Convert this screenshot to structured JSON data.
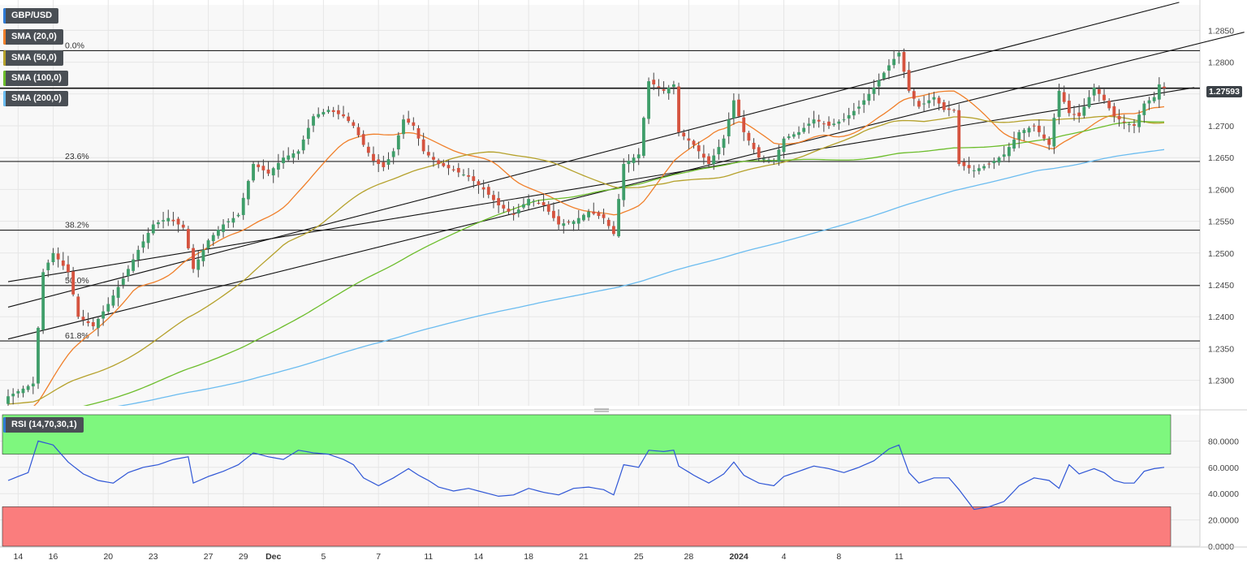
{
  "chart_data": [
    {
      "type": "candlestick",
      "symbol": "GBP/USD",
      "ylim": [
        1.226,
        1.289
      ],
      "y_ticks": [
        "1.2300",
        "1.2350",
        "1.2400",
        "1.2450",
        "1.2500",
        "1.2550",
        "1.2600",
        "1.2650",
        "1.2700",
        "1.2750",
        "1.2800",
        "1.2850"
      ],
      "x_ticks": [
        "14",
        "16",
        "20",
        "23",
        "27",
        "29",
        "Dec",
        "5",
        "7",
        "11",
        "14",
        "18",
        "21",
        "25",
        "28",
        "2024",
        "4",
        "8",
        "11"
      ],
      "last_price": "1.27593",
      "last_price_value": 1.27593,
      "fibonacci": [
        {
          "label": "0.0%",
          "value": 1.2818
        },
        {
          "label": "23.6%",
          "value": 1.2644
        },
        {
          "label": "38.2%",
          "value": 1.2536
        },
        {
          "label": "50.0%",
          "value": 1.2449
        },
        {
          "label": "61.8%",
          "value": 1.2362
        }
      ],
      "resistance_level": 1.2759,
      "indicators": [
        {
          "name": "SMA (20,0)",
          "color": "#f07f2a"
        },
        {
          "name": "SMA (50,0)",
          "color": "#b5a12b"
        },
        {
          "name": "SMA (100,0)",
          "color": "#6cbd2b"
        },
        {
          "name": "SMA (200,0)",
          "color": "#6bbcf0"
        }
      ],
      "close_keypoints": [
        [
          0,
          1.2275
        ],
        [
          5,
          1.2295
        ],
        [
          7,
          1.247
        ],
        [
          9,
          1.25
        ],
        [
          12,
          1.247
        ],
        [
          14,
          1.24
        ],
        [
          17,
          1.2385
        ],
        [
          20,
          1.242
        ],
        [
          23,
          1.246
        ],
        [
          26,
          1.2505
        ],
        [
          29,
          1.2545
        ],
        [
          32,
          1.2555
        ],
        [
          35,
          1.254
        ],
        [
          37,
          1.2475
        ],
        [
          40,
          1.252
        ],
        [
          43,
          1.2545
        ],
        [
          46,
          1.256
        ],
        [
          49,
          1.264
        ],
        [
          52,
          1.2625
        ],
        [
          55,
          1.265
        ],
        [
          58,
          1.266
        ],
        [
          61,
          1.2715
        ],
        [
          64,
          1.2725
        ],
        [
          67,
          1.2715
        ],
        [
          69,
          1.27
        ],
        [
          71,
          1.267
        ],
        [
          73,
          1.2645
        ],
        [
          75,
          1.2635
        ],
        [
          77,
          1.266
        ],
        [
          79,
          1.271
        ],
        [
          81,
          1.27
        ],
        [
          83,
          1.266
        ],
        [
          86,
          1.264
        ],
        [
          89,
          1.263
        ],
        [
          92,
          1.262
        ],
        [
          95,
          1.26
        ],
        [
          98,
          1.2575
        ],
        [
          101,
          1.256
        ],
        [
          104,
          1.2585
        ],
        [
          107,
          1.2575
        ],
        [
          110,
          1.2545
        ],
        [
          113,
          1.255
        ],
        [
          116,
          1.2565
        ],
        [
          119,
          1.2555
        ],
        [
          121,
          1.253
        ],
        [
          123,
          1.264
        ],
        [
          126,
          1.2655
        ],
        [
          128,
          1.277
        ],
        [
          131,
          1.2755
        ],
        [
          133,
          1.2765
        ],
        [
          134,
          1.269
        ],
        [
          137,
          1.267
        ],
        [
          140,
          1.264
        ],
        [
          143,
          1.268
        ],
        [
          145,
          1.274
        ],
        [
          147,
          1.269
        ],
        [
          150,
          1.265
        ],
        [
          153,
          1.2645
        ],
        [
          155,
          1.268
        ],
        [
          158,
          1.269
        ],
        [
          161,
          1.271
        ],
        [
          164,
          1.27
        ],
        [
          167,
          1.271
        ],
        [
          170,
          1.273
        ],
        [
          173,
          1.276
        ],
        [
          176,
          1.2795
        ],
        [
          178,
          1.2815
        ],
        [
          180,
          1.2755
        ],
        [
          182,
          1.273
        ],
        [
          185,
          1.2745
        ],
        [
          187,
          1.2725
        ],
        [
          189,
          1.2725
        ],
        [
          190,
          1.264
        ],
        [
          193,
          1.263
        ],
        [
          196,
          1.264
        ],
        [
          199,
          1.2655
        ],
        [
          202,
          1.269
        ],
        [
          205,
          1.27
        ],
        [
          208,
          1.267
        ],
        [
          210,
          1.2755
        ],
        [
          212,
          1.272
        ],
        [
          214,
          1.2715
        ],
        [
          217,
          1.276
        ],
        [
          219,
          1.274
        ],
        [
          221,
          1.2715
        ],
        [
          223,
          1.2705
        ],
        [
          225,
          1.27
        ],
        [
          227,
          1.2735
        ],
        [
          229,
          1.2745
        ],
        [
          230,
          1.2765
        ],
        [
          231,
          1.2759
        ]
      ],
      "channels": [
        {
          "from": [
            0,
            1.2455
          ],
          "to": [
            237,
            1.276
          ]
        },
        {
          "from": [
            0,
            1.2365
          ],
          "to": [
            247,
            1.2847
          ]
        },
        {
          "from": [
            0,
            1.2415
          ],
          "to": [
            234,
            1.2894
          ]
        }
      ]
    },
    {
      "type": "line",
      "name": "RSI (14,70,30,1)",
      "ylim": [
        0,
        100
      ],
      "y_ticks": [
        "0.0000",
        "20.0000",
        "40.0000",
        "60.0000",
        "80.0000"
      ],
      "overbought": 70,
      "oversold": 30,
      "keypoints": [
        [
          0,
          50
        ],
        [
          4,
          56
        ],
        [
          6,
          80
        ],
        [
          9,
          77
        ],
        [
          12,
          64
        ],
        [
          15,
          55
        ],
        [
          18,
          50
        ],
        [
          21,
          48
        ],
        [
          24,
          56
        ],
        [
          27,
          60
        ],
        [
          30,
          62
        ],
        [
          33,
          66
        ],
        [
          36,
          68
        ],
        [
          37,
          48
        ],
        [
          40,
          53
        ],
        [
          43,
          57
        ],
        [
          46,
          62
        ],
        [
          49,
          71
        ],
        [
          52,
          68
        ],
        [
          55,
          66
        ],
        [
          58,
          73
        ],
        [
          61,
          71
        ],
        [
          64,
          70
        ],
        [
          67,
          66
        ],
        [
          69,
          62
        ],
        [
          71,
          52
        ],
        [
          74,
          46
        ],
        [
          77,
          52
        ],
        [
          80,
          59
        ],
        [
          82,
          54
        ],
        [
          84,
          50
        ],
        [
          86,
          45
        ],
        [
          89,
          42
        ],
        [
          92,
          44
        ],
        [
          95,
          41
        ],
        [
          98,
          38
        ],
        [
          101,
          39
        ],
        [
          104,
          44
        ],
        [
          107,
          41
        ],
        [
          110,
          39
        ],
        [
          113,
          44
        ],
        [
          116,
          45
        ],
        [
          119,
          43
        ],
        [
          121,
          39
        ],
        [
          123,
          62
        ],
        [
          126,
          60
        ],
        [
          128,
          73
        ],
        [
          131,
          72
        ],
        [
          133,
          73
        ],
        [
          134,
          61
        ],
        [
          137,
          54
        ],
        [
          140,
          48
        ],
        [
          143,
          55
        ],
        [
          145,
          64
        ],
        [
          147,
          54
        ],
        [
          150,
          48
        ],
        [
          153,
          46
        ],
        [
          155,
          53
        ],
        [
          158,
          57
        ],
        [
          161,
          61
        ],
        [
          164,
          59
        ],
        [
          167,
          56
        ],
        [
          170,
          60
        ],
        [
          173,
          65
        ],
        [
          176,
          74
        ],
        [
          178,
          77
        ],
        [
          180,
          56
        ],
        [
          182,
          48
        ],
        [
          185,
          52
        ],
        [
          188,
          52
        ],
        [
          190,
          43
        ],
        [
          193,
          28
        ],
        [
          196,
          30
        ],
        [
          199,
          34
        ],
        [
          202,
          46
        ],
        [
          205,
          52
        ],
        [
          208,
          50
        ],
        [
          210,
          44
        ],
        [
          212,
          62
        ],
        [
          214,
          55
        ],
        [
          217,
          59
        ],
        [
          219,
          56
        ],
        [
          221,
          50
        ],
        [
          223,
          48
        ],
        [
          225,
          48
        ],
        [
          227,
          57
        ],
        [
          229,
          59
        ],
        [
          231,
          60
        ]
      ]
    }
  ]
}
